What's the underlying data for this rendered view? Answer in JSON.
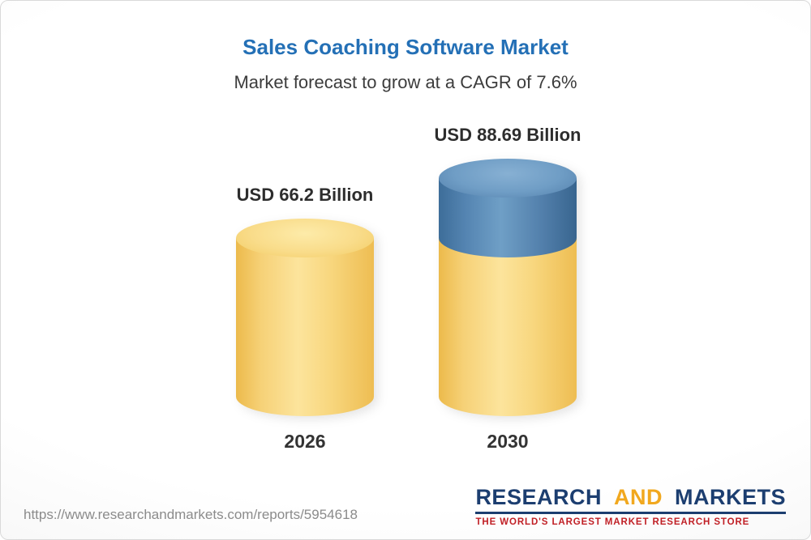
{
  "header": {
    "title": "Sales Coaching Software Market",
    "subtitle": "Market forecast to grow at a CAGR of 7.6%"
  },
  "chart_data": {
    "type": "bar",
    "subtype": "3d-cylinder",
    "title": "Sales Coaching Software Market",
    "subtitle": "Market forecast to grow at a CAGR of 7.6%",
    "categories": [
      "2026",
      "2030"
    ],
    "values": [
      66.2,
      88.69
    ],
    "value_labels": [
      "USD 66.2 Billion",
      "USD 88.69 Billion"
    ],
    "unit": "USD Billion",
    "cagr_percent": 7.6,
    "legend": "none",
    "grid": false,
    "axes_shown": false,
    "colors": {
      "base_bar": "#F5CF6B",
      "growth_segment": "#4E81AE",
      "title": "#2470B6"
    },
    "notes": "2030 bar is stacked: yellow portion equals the 2026 value (66.2), blue top portion is the growth to 88.69"
  },
  "footer": {
    "url": "https://www.researchandmarkets.com/reports/5954618",
    "logo": {
      "word1": "RESEARCH",
      "word2": "AND",
      "word3": "MARKETS",
      "tagline": "THE WORLD'S LARGEST MARKET RESEARCH STORE"
    }
  }
}
